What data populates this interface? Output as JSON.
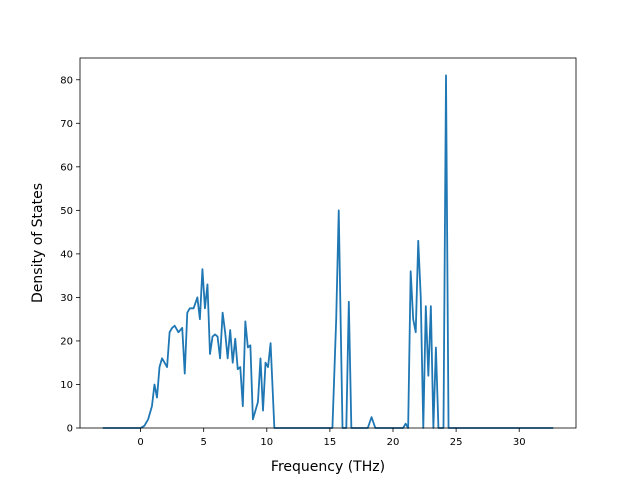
{
  "chart_data": {
    "type": "line",
    "title": "",
    "xlabel": "Frequency (THz)",
    "ylabel": "Density of States",
    "xlim": [
      -4.8,
      34.5
    ],
    "ylim": [
      0,
      85
    ],
    "xticks": [
      0,
      5,
      10,
      15,
      20,
      25,
      30
    ],
    "yticks": [
      0,
      10,
      20,
      30,
      40,
      50,
      60,
      70,
      80
    ],
    "grid": false,
    "legend": "none",
    "series_color": "#1f77b4",
    "x": [
      -3.0,
      -0.5,
      0.0,
      0.3,
      0.6,
      0.9,
      1.1,
      1.3,
      1.5,
      1.7,
      1.9,
      2.1,
      2.3,
      2.5,
      2.7,
      3.0,
      3.3,
      3.5,
      3.7,
      3.9,
      4.2,
      4.5,
      4.7,
      4.9,
      5.1,
      5.3,
      5.5,
      5.7,
      5.9,
      6.1,
      6.3,
      6.5,
      6.7,
      6.9,
      7.1,
      7.3,
      7.5,
      7.7,
      7.9,
      8.1,
      8.3,
      8.5,
      8.7,
      8.9,
      9.1,
      9.3,
      9.5,
      9.7,
      9.9,
      10.1,
      10.3,
      10.6,
      10.8,
      15.2,
      15.5,
      15.7,
      16.0,
      16.3,
      16.5,
      16.7,
      16.9,
      18.0,
      18.3,
      18.6,
      20.8,
      21.0,
      21.2,
      21.4,
      21.6,
      21.8,
      22.0,
      22.2,
      22.4,
      22.6,
      22.8,
      23.0,
      23.2,
      23.4,
      23.6,
      23.8,
      24.0,
      24.2,
      24.4,
      32.7
    ],
    "values": [
      0,
      0,
      0,
      0.5,
      2,
      5,
      10,
      7,
      14,
      16,
      15,
      14,
      22,
      23,
      23.5,
      22,
      23,
      12.5,
      26.5,
      27.5,
      27.5,
      30,
      25,
      36.5,
      27.5,
      33,
      17,
      21,
      21.5,
      21,
      16,
      26.5,
      22,
      16,
      22.5,
      15,
      20.5,
      13.5,
      14,
      5,
      24.5,
      18.5,
      19,
      2,
      4,
      6,
      16,
      4,
      15,
      14,
      19.5,
      0,
      0,
      0,
      25,
      50,
      0,
      0,
      29,
      0,
      0,
      0,
      2.5,
      0,
      0,
      1,
      0,
      36,
      25,
      22,
      43,
      30,
      0,
      28,
      12,
      28,
      0,
      18.5,
      0,
      0,
      0,
      81,
      0,
      0
    ]
  }
}
